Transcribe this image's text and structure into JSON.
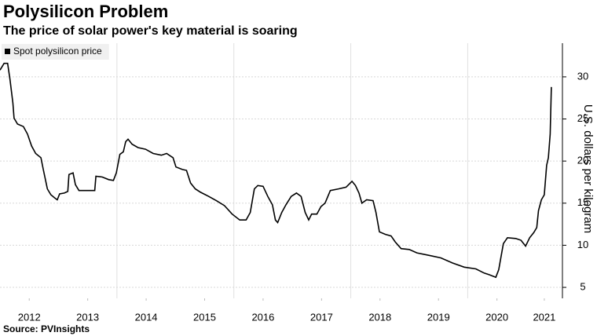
{
  "chart_data": {
    "type": "line",
    "title": "Polysilicon Problem",
    "subtitle": "The price of solar power's key material is soaring",
    "ylabel": "U.S. dollars per kilogram",
    "source": "Source: PVInsights",
    "legend": "top-left",
    "grid": true,
    "xlim": [
      2012,
      2021.62
    ],
    "xticks": [
      {
        "value": 2012.5,
        "label": "2012"
      },
      {
        "value": 2013.5,
        "label": "2013"
      },
      {
        "value": 2014.5,
        "label": "2014"
      },
      {
        "value": 2015.5,
        "label": "2015"
      },
      {
        "value": 2016.5,
        "label": "2016"
      },
      {
        "value": 2017.5,
        "label": "2017"
      },
      {
        "value": 2018.5,
        "label": "2018"
      },
      {
        "value": 2019.5,
        "label": "2019"
      },
      {
        "value": 2020.5,
        "label": "2020"
      },
      {
        "value": 2021.31,
        "label": "2021"
      }
    ],
    "xgrid": [
      2014,
      2016,
      2018,
      2020
    ],
    "ylim": [
      3.7,
      34
    ],
    "yticks": [
      5,
      10,
      15,
      20,
      25,
      30
    ],
    "x": [
      2012.0,
      2012.07,
      2012.13,
      2012.17,
      2012.22,
      2012.24,
      2012.3,
      2012.4,
      2012.47,
      2012.54,
      2012.61,
      2012.7,
      2012.74,
      2012.81,
      2012.87,
      2012.94,
      2012.98,
      2013.02,
      2013.1,
      2013.16,
      2013.18,
      2013.25,
      2013.29,
      2013.35,
      2013.45,
      2013.62,
      2013.64,
      2013.75,
      2013.86,
      2013.94,
      2013.99,
      2014.05,
      2014.11,
      2014.15,
      2014.19,
      2014.26,
      2014.36,
      2014.49,
      2014.62,
      2014.76,
      2014.85,
      2014.96,
      2015.01,
      2015.12,
      2015.19,
      2015.26,
      2015.34,
      2015.43,
      2015.57,
      2015.7,
      2015.84,
      2015.97,
      2016.1,
      2016.21,
      2016.28,
      2016.35,
      2016.41,
      2016.5,
      2016.58,
      2016.66,
      2016.71,
      2016.75,
      2016.82,
      2016.89,
      2016.98,
      2017.07,
      2017.15,
      2017.22,
      2017.28,
      2017.33,
      2017.42,
      2017.49,
      2017.56,
      2017.65,
      2017.79,
      2017.92,
      2018.02,
      2018.08,
      2018.14,
      2018.19,
      2018.27,
      2018.38,
      2018.43,
      2018.49,
      2018.59,
      2018.69,
      2018.76,
      2018.86,
      2019.0,
      2019.13,
      2019.34,
      2019.54,
      2019.74,
      2019.94,
      2020.14,
      2020.28,
      2020.37,
      2020.48,
      2020.53,
      2020.61,
      2020.68,
      2020.82,
      2020.91,
      2020.99,
      2021.06,
      2021.13,
      2021.18,
      2021.21,
      2021.26,
      2021.31,
      2021.35,
      2021.38,
      2021.41,
      2021.43
    ],
    "series": [
      {
        "name": "Spot polysilicon price",
        "color": "#000000",
        "values": [
          30.8,
          31.6,
          31.6,
          29.7,
          26.9,
          25.1,
          24.4,
          24.1,
          23.2,
          21.8,
          20.9,
          20.4,
          19.0,
          16.7,
          16.0,
          15.6,
          15.4,
          16.1,
          16.2,
          16.4,
          18.4,
          18.6,
          17.2,
          16.5,
          16.5,
          16.5,
          18.2,
          18.1,
          17.8,
          17.7,
          18.6,
          20.8,
          21.1,
          22.3,
          22.6,
          22.0,
          21.6,
          21.4,
          20.9,
          20.7,
          20.9,
          20.4,
          19.3,
          19.0,
          18.9,
          17.4,
          16.7,
          16.3,
          15.8,
          15.3,
          14.7,
          13.7,
          13.0,
          13.0,
          13.9,
          16.7,
          17.1,
          17.0,
          15.8,
          14.8,
          13.0,
          12.7,
          13.9,
          14.8,
          15.8,
          16.2,
          15.8,
          13.9,
          13.0,
          13.7,
          13.7,
          14.6,
          15.0,
          16.5,
          16.7,
          16.9,
          17.6,
          17.1,
          16.2,
          15.0,
          15.4,
          15.3,
          13.9,
          11.6,
          11.3,
          11.1,
          10.4,
          9.6,
          9.5,
          9.1,
          8.8,
          8.5,
          7.9,
          7.4,
          7.2,
          6.7,
          6.5,
          6.2,
          7.1,
          10.2,
          10.9,
          10.8,
          10.6,
          9.9,
          10.9,
          11.5,
          12.1,
          14.1,
          15.4,
          16.0,
          19.5,
          20.4,
          23.2,
          28.8
        ]
      }
    ]
  }
}
